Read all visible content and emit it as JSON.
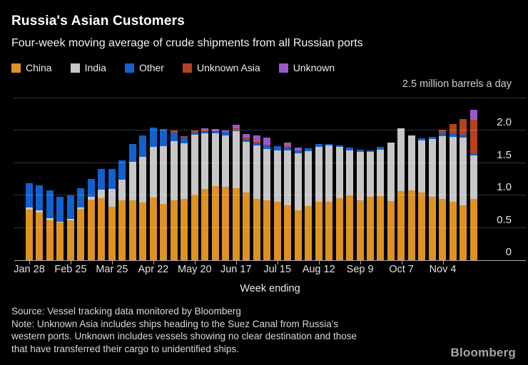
{
  "header": {
    "title": "Russia's Asian Customers",
    "subtitle": "Four-week moving average of crude shipments from all Russian ports"
  },
  "legend": {
    "items": [
      {
        "label": "China",
        "color": "#DD9221"
      },
      {
        "label": "India",
        "color": "#C7C7C7"
      },
      {
        "label": "Other",
        "color": "#1161CF"
      },
      {
        "label": "Unknown Asia",
        "color": "#B5411F"
      },
      {
        "label": "Unknown",
        "color": "#9C57C9"
      }
    ]
  },
  "chart": {
    "unit_label": "2.5 million barrels a day",
    "x_axis_title": "Week ending",
    "y_ticks": [
      {
        "value": 2.0,
        "label": "2.0"
      },
      {
        "value": 1.5,
        "label": "1.5"
      },
      {
        "value": 1.0,
        "label": "1.0"
      },
      {
        "value": 0.5,
        "label": "0.5"
      },
      {
        "value": 0.0,
        "label": "0"
      }
    ],
    "y_gridlines": [
      0.5,
      1.0,
      1.5,
      2.0,
      2.5
    ]
  },
  "chart_data": {
    "type": "bar",
    "stacked": true,
    "title": "Russia's Asian Customers",
    "subtitle": "Four-week moving average of crude shipments from all Russian ports",
    "xlabel": "Week ending",
    "ylabel": "million barrels a day",
    "ylim": [
      0,
      2.5
    ],
    "grid": "dotted horizontal",
    "legend_position": "top-left",
    "categories": [
      "Jan 28",
      "Feb 4",
      "Feb 11",
      "Feb 18",
      "Feb 25",
      "Mar 4",
      "Mar 11",
      "Mar 18",
      "Mar 25",
      "Apr 1",
      "Apr 8",
      "Apr 15",
      "Apr 22",
      "Apr 29",
      "May 6",
      "May 13",
      "May 20",
      "May 27",
      "Jun 3",
      "Jun 10",
      "Jun 17",
      "Jun 24",
      "Jul 1",
      "Jul 8",
      "Jul 15",
      "Jul 22",
      "Jul 29",
      "Aug 5",
      "Aug 12",
      "Aug 19",
      "Aug 26",
      "Sep 2",
      "Sep 9",
      "Sep 16",
      "Sep 23",
      "Sep 30",
      "Oct 7",
      "Oct 14",
      "Oct 21",
      "Oct 28",
      "Nov 4",
      "Nov 11",
      "Nov 18",
      "Nov 25"
    ],
    "x_tick_labels": [
      {
        "index": 0,
        "label": "Jan 28"
      },
      {
        "index": 4,
        "label": "Feb 25"
      },
      {
        "index": 8,
        "label": "Mar 25"
      },
      {
        "index": 12,
        "label": "Apr 22"
      },
      {
        "index": 16,
        "label": "May 20"
      },
      {
        "index": 20,
        "label": "Jun 17"
      },
      {
        "index": 24,
        "label": "Jul 15"
      },
      {
        "index": 28,
        "label": "Aug 12"
      },
      {
        "index": 32,
        "label": "Sep 9"
      },
      {
        "index": 36,
        "label": "Oct 7"
      },
      {
        "index": 40,
        "label": "Nov 4"
      }
    ],
    "series": [
      {
        "name": "China",
        "color": "#DD9221",
        "values": [
          0.78,
          0.74,
          0.62,
          0.58,
          0.62,
          0.79,
          0.94,
          0.96,
          0.83,
          0.93,
          0.92,
          0.89,
          0.97,
          0.87,
          0.92,
          0.95,
          1.01,
          1.1,
          1.15,
          1.13,
          1.11,
          1.05,
          0.95,
          0.92,
          0.9,
          0.85,
          0.77,
          0.84,
          0.9,
          0.9,
          0.96,
          1.0,
          0.93,
          0.98,
          0.99,
          0.91,
          1.07,
          1.08,
          1.05,
          0.98,
          0.95,
          0.9,
          0.85,
          0.95
        ]
      },
      {
        "name": "India",
        "color": "#C7C7C7",
        "values": [
          0.03,
          0.03,
          0.03,
          0.02,
          0.02,
          0.03,
          0.04,
          0.13,
          0.27,
          0.32,
          0.6,
          0.71,
          0.78,
          0.89,
          0.92,
          0.86,
          0.93,
          0.86,
          0.81,
          0.8,
          0.88,
          0.78,
          0.82,
          0.8,
          0.8,
          0.85,
          0.88,
          0.84,
          0.85,
          0.87,
          0.79,
          0.7,
          0.74,
          0.69,
          0.72,
          0.91,
          0.97,
          0.85,
          0.8,
          0.89,
          0.97,
          1.01,
          1.04,
          0.67
        ]
      },
      {
        "name": "Other",
        "color": "#1161CF",
        "values": [
          0.38,
          0.39,
          0.43,
          0.38,
          0.36,
          0.29,
          0.28,
          0.32,
          0.31,
          0.29,
          0.27,
          0.33,
          0.3,
          0.27,
          0.13,
          0.08,
          0.03,
          0.03,
          0.03,
          0.05,
          0.02,
          0.04,
          0.04,
          0.05,
          0.06,
          0.04,
          0.05,
          0.05,
          0.04,
          0.03,
          0.02,
          0.04,
          0.04,
          0.03,
          0.04,
          0.0,
          0.0,
          0.0,
          0.03,
          0.04,
          0.05,
          0.05,
          0.05,
          0.03
        ]
      },
      {
        "name": "Unknown Asia",
        "color": "#B5411F",
        "values": [
          0,
          0,
          0,
          0,
          0,
          0,
          0,
          0,
          0,
          0,
          0,
          0,
          0,
          0,
          0.03,
          0.03,
          0.03,
          0.03,
          0,
          0,
          0.03,
          0.03,
          0.02,
          0.02,
          0,
          0.02,
          0,
          0,
          0,
          0,
          0,
          0,
          0,
          0,
          0,
          0,
          0,
          0,
          0,
          0,
          0.05,
          0.14,
          0.24,
          0.52
        ]
      },
      {
        "name": "Unknown",
        "color": "#9C57C9",
        "values": [
          0,
          0,
          0,
          0,
          0,
          0,
          0,
          0,
          0,
          0,
          0,
          0,
          0,
          0,
          0,
          0,
          0,
          0.02,
          0.04,
          0.03,
          0.05,
          0.05,
          0.1,
          0.1,
          0,
          0.06,
          0.04,
          0,
          0,
          0,
          0,
          0,
          0,
          0,
          0,
          0,
          0,
          0,
          0,
          0,
          0,
          0,
          0,
          0.15
        ]
      }
    ]
  },
  "footer": {
    "source": "Source: Vessel tracking data monitored by Bloomberg",
    "note_lines": [
      "Note: Unknown Asia includes ships heading to the Suez Canal from Russia's",
      "western ports. Unknown includes vessels showing no clear destination and those",
      "that have transferred their cargo to unidentified ships."
    ],
    "logo": "Bloomberg"
  }
}
